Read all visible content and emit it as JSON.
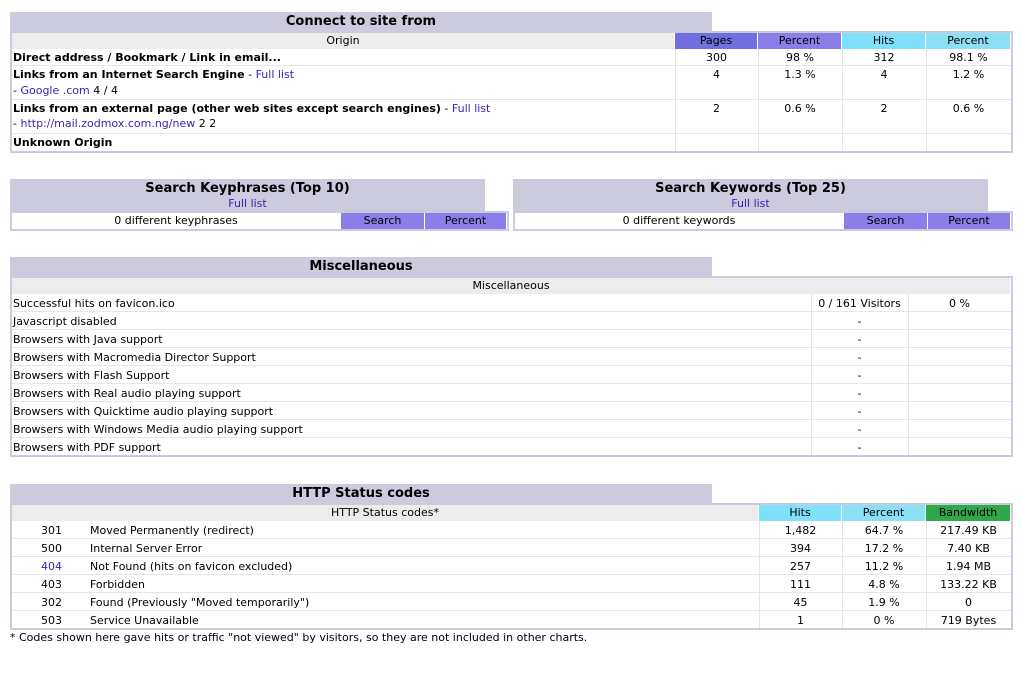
{
  "connect": {
    "title": "Connect to site from",
    "headers": {
      "origin": "Origin",
      "pages": "Pages",
      "percent1": "Percent",
      "hits": "Hits",
      "percent2": "Percent"
    },
    "rows": [
      {
        "label": "Direct address / Bookmark / Link in email...",
        "pages": "300",
        "pct1": "98 %",
        "hits": "312",
        "pct2": "98.1 %"
      },
      {
        "label": "Links from an Internet Search Engine",
        "link": "Full list",
        "sub_link": "Google .com",
        "sub_value": "4 / 4",
        "pages": "4",
        "pct1": "1.3 %",
        "hits": "4",
        "pct2": "1.2 %"
      },
      {
        "label": "Links from an external page (other web sites except search engines)",
        "link": "Full list",
        "sub_link": "http://mail.zodmox.com.ng/new",
        "sub_value": "2 2",
        "pages": "2",
        "pct1": "0.6 %",
        "hits": "2",
        "pct2": "0.6 %"
      },
      {
        "label": "Unknown Origin",
        "pages": "",
        "pct1": "",
        "hits": "",
        "pct2": ""
      }
    ]
  },
  "keyphrases": {
    "title": "Search Keyphrases (Top 10)",
    "full_list": "Full list",
    "summary": "0 different keyphrases",
    "search": "Search",
    "percent": "Percent"
  },
  "keywords": {
    "title": "Search Keywords (Top 25)",
    "full_list": "Full list",
    "summary": "0 different keywords",
    "search": "Search",
    "percent": "Percent"
  },
  "misc": {
    "title": "Miscellaneous",
    "header": "Miscellaneous",
    "rows": [
      {
        "label": "Successful hits on favicon.ico",
        "value": "0 / 161 Visitors",
        "pct": "0 %"
      },
      {
        "label": "Javascript disabled",
        "value": "-",
        "pct": ""
      },
      {
        "label": "Browsers with Java support",
        "value": "-",
        "pct": ""
      },
      {
        "label": "Browsers with Macromedia Director Support",
        "value": "-",
        "pct": ""
      },
      {
        "label": "Browsers with Flash Support",
        "value": "-",
        "pct": ""
      },
      {
        "label": "Browsers with Real audio playing support",
        "value": "-",
        "pct": ""
      },
      {
        "label": "Browsers with Quicktime audio playing support",
        "value": "-",
        "pct": ""
      },
      {
        "label": "Browsers with Windows Media audio playing support",
        "value": "-",
        "pct": ""
      },
      {
        "label": "Browsers with PDF support",
        "value": "-",
        "pct": ""
      }
    ]
  },
  "http": {
    "title": "HTTP Status codes",
    "headers": {
      "codes": "HTTP Status codes*",
      "hits": "Hits",
      "percent": "Percent",
      "bandwidth": "Bandwidth"
    },
    "rows": [
      {
        "code": "301",
        "desc": "Moved Permanently (redirect)",
        "hits": "1,482",
        "pct": "64.7 %",
        "bw": "217.49 KB"
      },
      {
        "code": "500",
        "desc": "Internal Server Error",
        "hits": "394",
        "pct": "17.2 %",
        "bw": "7.40 KB"
      },
      {
        "code": "404",
        "desc": "Not Found (hits on favicon excluded)",
        "hits": "257",
        "pct": "11.2 %",
        "bw": "1.94 MB"
      },
      {
        "code": "403",
        "desc": "Forbidden",
        "hits": "111",
        "pct": "4.8 %",
        "bw": "133.22 KB"
      },
      {
        "code": "302",
        "desc": "Found (Previously \"Moved temporarily\")",
        "hits": "45",
        "pct": "1.9 %",
        "bw": "0"
      },
      {
        "code": "503",
        "desc": "Service Unavailable",
        "hits": "1",
        "pct": "0 %",
        "bw": "719 Bytes"
      }
    ],
    "footnote": "* Codes shown here gave hits or traffic \"not viewed\" by visitors, so they are not included in other charts."
  }
}
